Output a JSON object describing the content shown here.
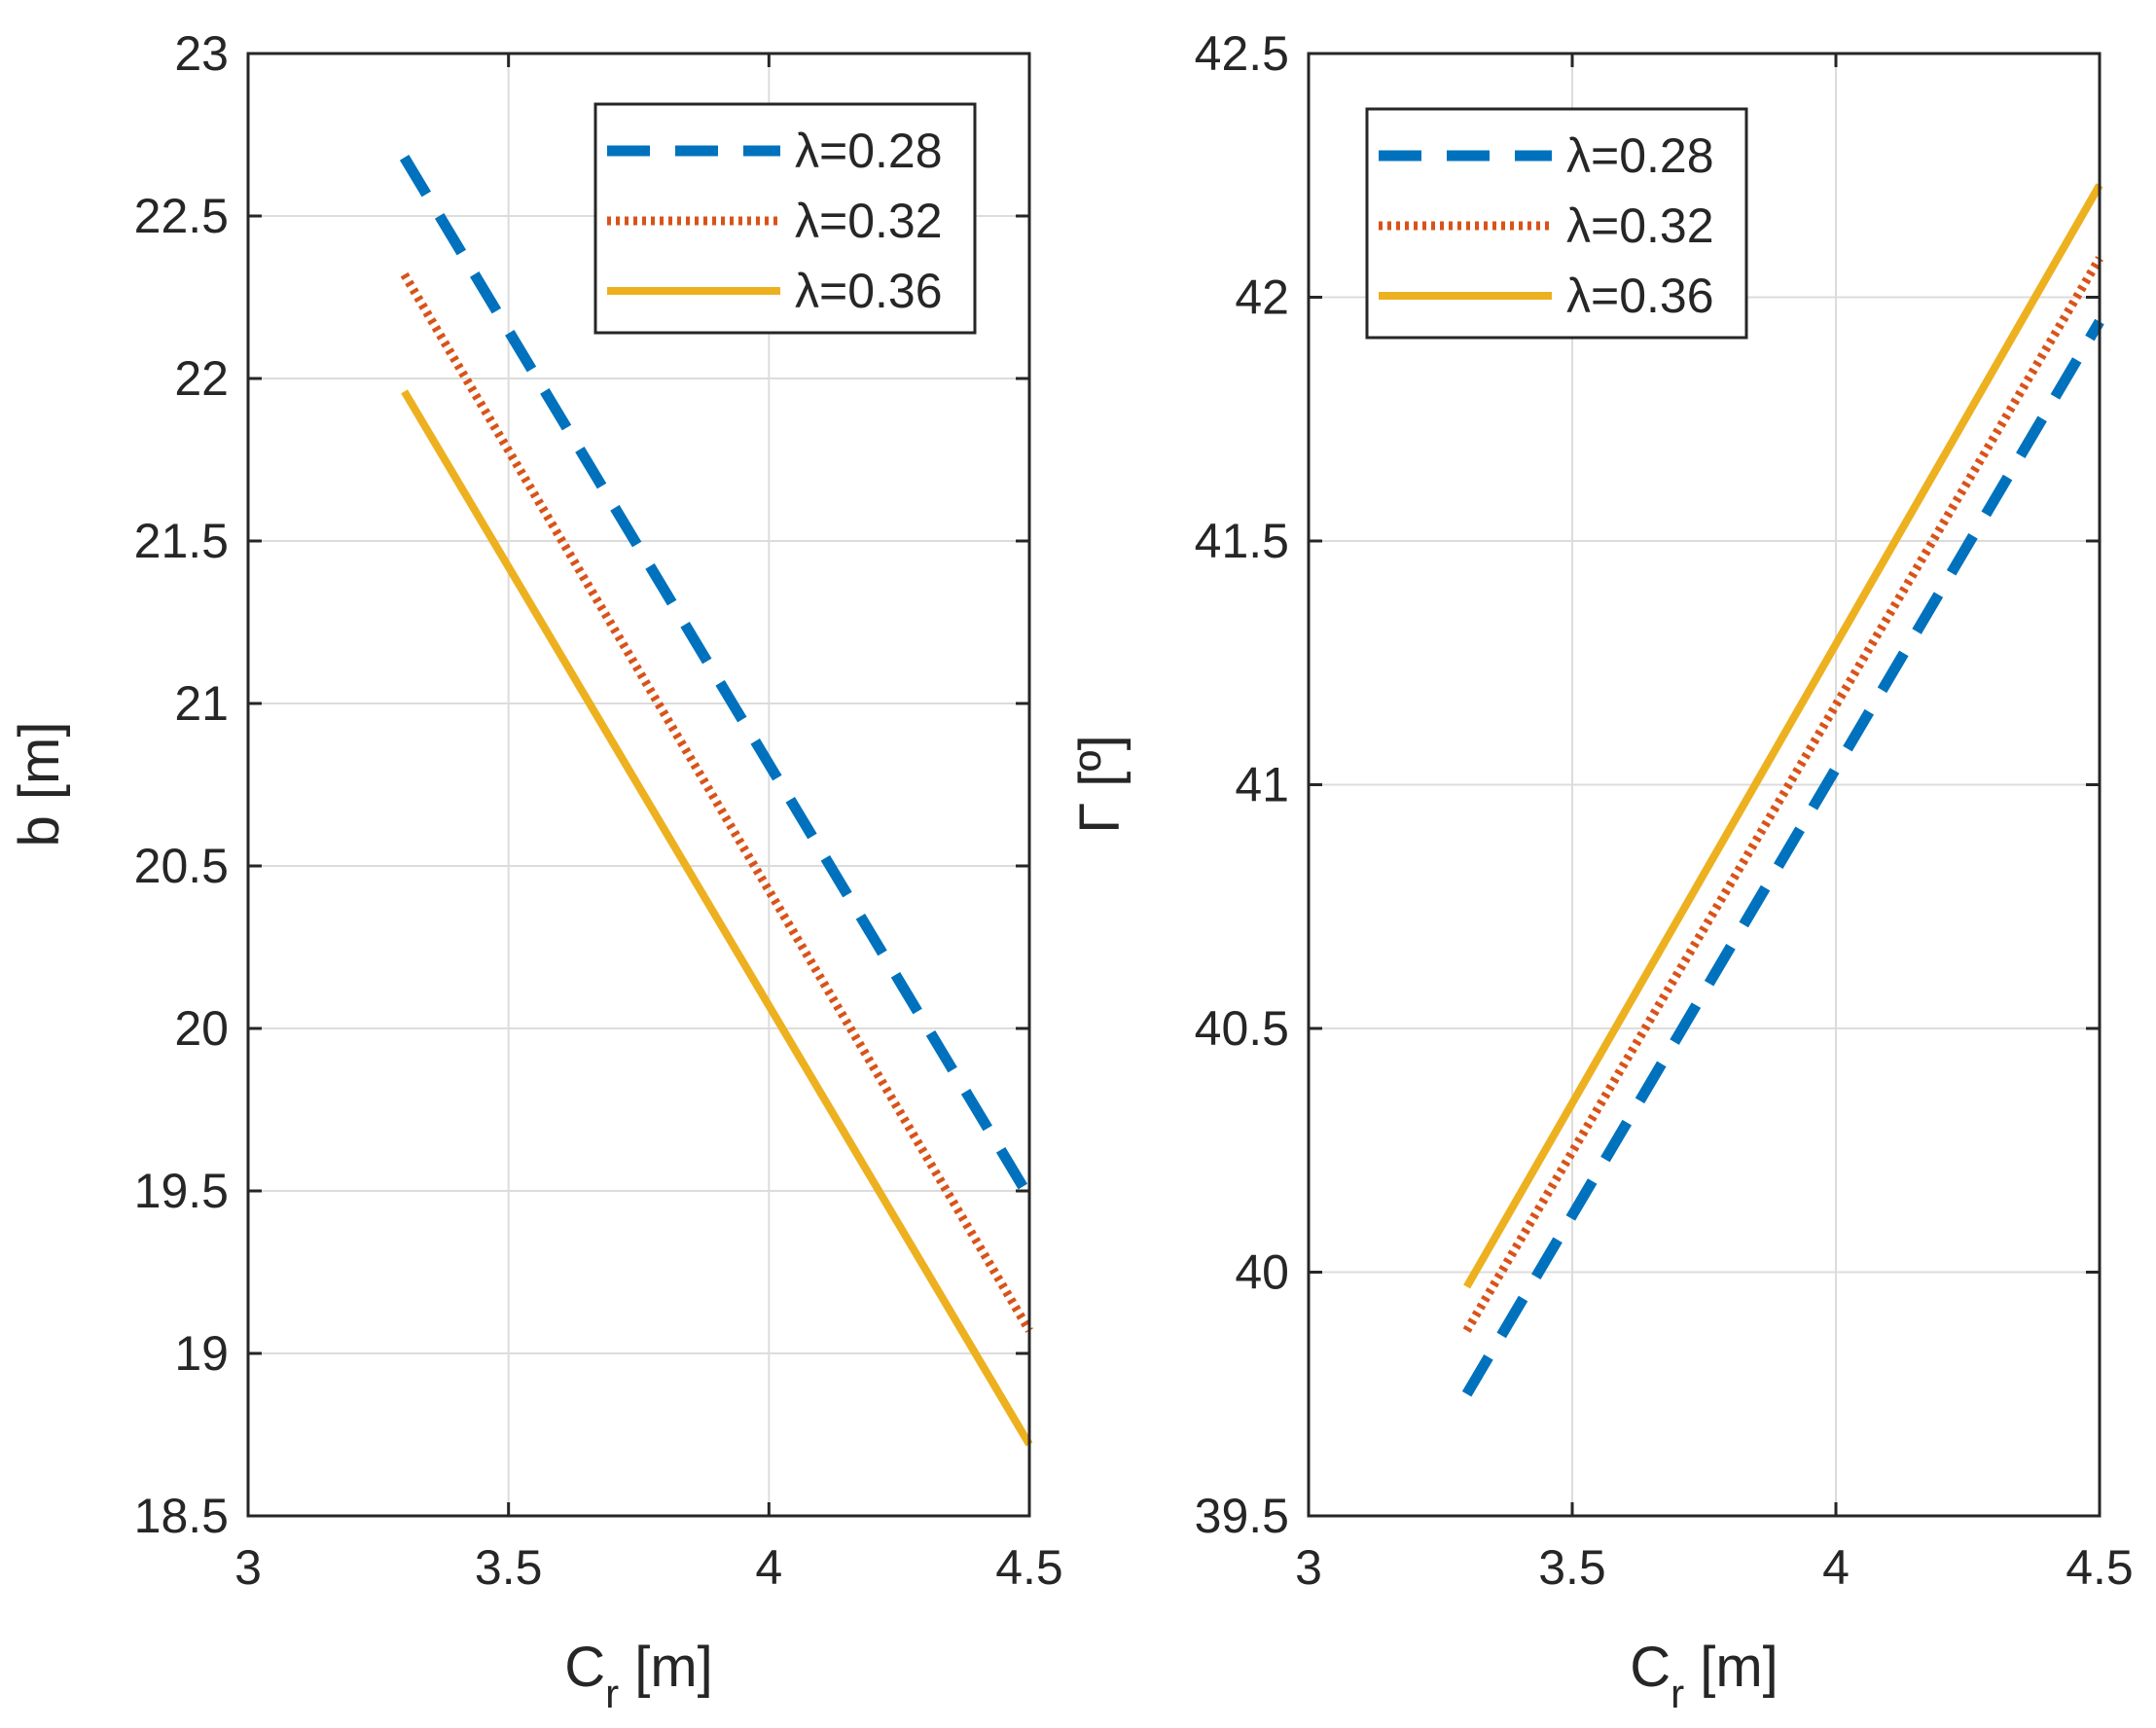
{
  "chart_data": [
    {
      "type": "line",
      "title": "",
      "xlabel": "C_r [m]",
      "xlabel_main": "C",
      "xlabel_sub": "r",
      "xlabel_unit": " [m]",
      "ylabel": "b [m]",
      "xlim": [
        3,
        4.5
      ],
      "ylim": [
        18.5,
        23
      ],
      "xticks": [
        3,
        3.5,
        4,
        4.5
      ],
      "xtick_labels": [
        "3",
        "3.5",
        "4",
        "4.5"
      ],
      "yticks": [
        18.5,
        19,
        19.5,
        20,
        20.5,
        21,
        21.5,
        22,
        22.5,
        23
      ],
      "ytick_labels": [
        "18.5",
        "19",
        "19.5",
        "20",
        "20.5",
        "21",
        "21.5",
        "22",
        "22.5",
        "23"
      ],
      "grid": true,
      "legend_position": "top-right",
      "series": [
        {
          "name": "λ=0.28",
          "style": "dashed",
          "color": "#0072BD",
          "x": [
            3.3,
            4.5
          ],
          "y": [
            22.68,
            19.48
          ]
        },
        {
          "name": "λ=0.32",
          "style": "dotted",
          "color": "#D95319",
          "x": [
            3.3,
            4.5
          ],
          "y": [
            22.32,
            19.07
          ]
        },
        {
          "name": "λ=0.36",
          "style": "solid",
          "color": "#EDB120",
          "x": [
            3.3,
            4.5
          ],
          "y": [
            21.96,
            18.72
          ]
        }
      ]
    },
    {
      "type": "line",
      "title": "",
      "xlabel": "C_r [m]",
      "xlabel_main": "C",
      "xlabel_sub": "r",
      "xlabel_unit": " [m]",
      "ylabel": "Γ [º]",
      "xlim": [
        3,
        4.5
      ],
      "ylim": [
        39.5,
        42.5
      ],
      "xticks": [
        3,
        3.5,
        4,
        4.5
      ],
      "xtick_labels": [
        "3",
        "3.5",
        "4",
        "4.5"
      ],
      "yticks": [
        39.5,
        40,
        40.5,
        41,
        41.5,
        42,
        42.5
      ],
      "ytick_labels": [
        "39.5",
        "40",
        "40.5",
        "41",
        "41.5",
        "42",
        "42.5"
      ],
      "grid": true,
      "legend_position": "top-left",
      "series": [
        {
          "name": "λ=0.28",
          "style": "dashed",
          "color": "#0072BD",
          "x": [
            3.3,
            4.5
          ],
          "y": [
            39.75,
            41.95
          ]
        },
        {
          "name": "λ=0.32",
          "style": "dotted",
          "color": "#D95319",
          "x": [
            3.3,
            4.5
          ],
          "y": [
            39.88,
            42.08
          ]
        },
        {
          "name": "λ=0.36",
          "style": "solid",
          "color": "#EDB120",
          "x": [
            3.3,
            4.5
          ],
          "y": [
            39.97,
            42.23
          ]
        }
      ]
    }
  ]
}
